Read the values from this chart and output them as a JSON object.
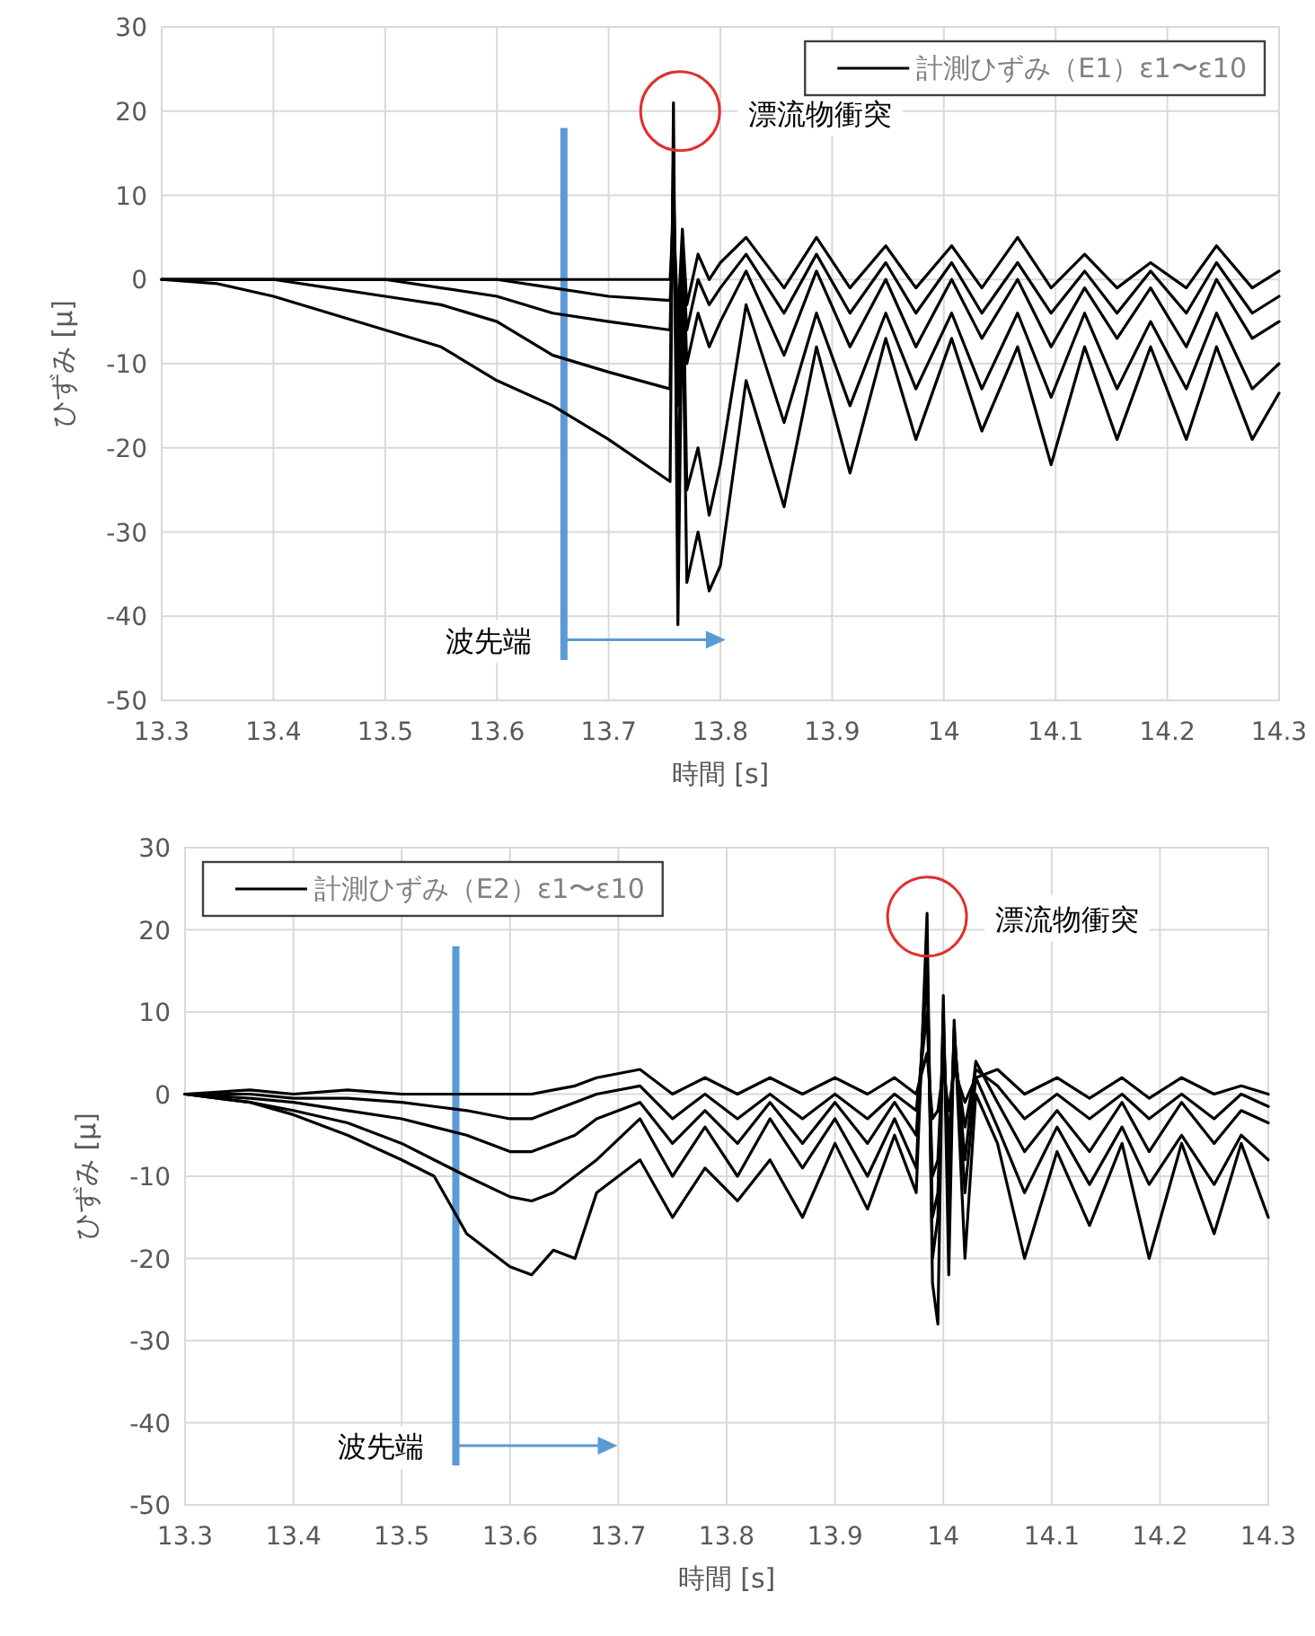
{
  "chart_data": [
    {
      "type": "line",
      "xlabel": "時間 [s]",
      "ylabel": "ひずみ [μ]",
      "legend": "top right",
      "grid": true,
      "xlim": [
        13.3,
        14.3
      ],
      "ylim": [
        -50,
        30
      ],
      "xticks": [
        13.3,
        13.4,
        13.5,
        13.6,
        13.7,
        13.8,
        13.9,
        14,
        14.1,
        14.2,
        14.3
      ],
      "yticks": [
        -50,
        -40,
        -30,
        -20,
        -10,
        0,
        10,
        20,
        30
      ],
      "x": [
        13.3,
        13.35,
        13.4,
        13.45,
        13.5,
        13.55,
        13.6,
        13.65,
        13.7,
        13.755,
        13.758,
        13.762,
        13.766,
        13.77,
        13.78,
        13.79,
        13.8,
        13.823,
        13.857,
        13.886,
        13.916,
        13.948,
        13.975,
        14.007,
        14.034,
        14.066,
        14.096,
        14.126,
        14.155,
        14.185,
        14.217,
        14.244,
        14.276,
        14.3
      ],
      "series": [
        {
          "name": "計測ひずみ（E1）ε1〜ε10",
          "color": "#000000",
          "values": [
            0,
            0,
            0,
            0,
            0,
            0,
            0,
            0,
            0,
            0,
            8,
            -5,
            6,
            -3,
            3,
            0,
            2,
            5,
            -1,
            5,
            -1,
            4,
            -1,
            4,
            -1,
            5,
            -1,
            3,
            -1,
            2,
            -1,
            4,
            -1,
            1
          ]
        },
        {
          "color": "#000000",
          "values": [
            0,
            0,
            0,
            0,
            0,
            0,
            0,
            -1,
            -2,
            -2.5,
            4,
            -8,
            3,
            -6,
            0,
            -3,
            -1,
            3,
            -4,
            3,
            -4,
            2,
            -4,
            2,
            -4,
            2,
            -4,
            1,
            -4,
            1,
            -4,
            2,
            -4,
            -2
          ]
        },
        {
          "color": "#000000",
          "values": [
            0,
            0,
            0,
            0,
            0,
            -1,
            -2,
            -4,
            -5,
            -6,
            12,
            -15,
            5,
            -10,
            -4,
            -8,
            -5,
            1,
            -9,
            1,
            -8,
            0,
            -8,
            0,
            -7,
            0,
            -8,
            -1,
            -7,
            -1,
            -8,
            0,
            -7,
            -5
          ]
        },
        {
          "color": "#000000",
          "values": [
            0,
            0,
            0,
            -1,
            -2,
            -3,
            -5,
            -9,
            -11,
            -13,
            15,
            -30,
            5,
            -25,
            -20,
            -28,
            -22,
            -3,
            -17,
            -4,
            -15,
            -4,
            -13,
            -4,
            -13,
            -4,
            -14,
            -4,
            -13,
            -5,
            -13,
            -4,
            -13,
            -10
          ]
        },
        {
          "color": "#000000",
          "values": [
            0,
            -0.5,
            -2,
            -4,
            -6,
            -8,
            -12,
            -15,
            -19,
            -24,
            21,
            -41,
            0,
            -36,
            -30,
            -37,
            -34,
            -12,
            -27,
            -8,
            -23,
            -7,
            -19,
            -7,
            -18,
            -8,
            -22,
            -8,
            -19,
            -8,
            -19,
            -8,
            -19,
            -13.5
          ]
        }
      ],
      "ref_lines": [
        {
          "axis": "x",
          "value": 13.66,
          "label": "波先端",
          "color": "#5b9bd5"
        }
      ],
      "annotations": [
        {
          "text": "漂流物衝突",
          "x": 13.764,
          "y": 20
        }
      ]
    },
    {
      "type": "line",
      "xlabel": "時間 [s]",
      "ylabel": "ひずみ [μ]",
      "legend": "top left",
      "grid": true,
      "xlim": [
        13.3,
        14.3
      ],
      "ylim": [
        -50,
        30
      ],
      "xticks": [
        13.3,
        13.4,
        13.5,
        13.6,
        13.7,
        13.8,
        13.9,
        14,
        14.1,
        14.2,
        14.3
      ],
      "yticks": [
        -50,
        -40,
        -30,
        -20,
        -10,
        0,
        10,
        20,
        30
      ],
      "x": [
        13.3,
        13.36,
        13.4,
        13.45,
        13.5,
        13.53,
        13.56,
        13.6,
        13.62,
        13.64,
        13.66,
        13.68,
        13.72,
        13.75,
        13.78,
        13.81,
        13.84,
        13.87,
        13.9,
        13.93,
        13.955,
        13.975,
        13.985,
        13.99,
        13.995,
        14.0,
        14.005,
        14.01,
        14.02,
        14.03,
        14.05,
        14.075,
        14.105,
        14.135,
        14.165,
        14.19,
        14.22,
        14.25,
        14.275,
        14.3
      ],
      "series": [
        {
          "name": "計測ひずみ（E2）ε1〜ε10",
          "color": "#000000",
          "values": [
            0,
            0.5,
            0,
            0.5,
            0,
            0,
            0,
            0,
            0,
            0.5,
            1,
            2,
            3,
            0,
            2,
            0,
            2,
            0,
            2,
            0,
            2,
            0,
            5,
            -3,
            -2,
            3,
            -2,
            3,
            -1,
            2,
            3,
            0,
            2,
            -0.5,
            2,
            -0.5,
            2,
            0,
            1,
            0
          ]
        },
        {
          "color": "#000000",
          "values": [
            0,
            0,
            -0.5,
            -0.5,
            -1,
            -1.5,
            -2,
            -3,
            -3,
            -2,
            -1,
            0,
            1,
            -3,
            0,
            -3,
            0,
            -3,
            0,
            -3,
            0,
            -2,
            10,
            -10,
            -8,
            6,
            -6,
            5,
            -4,
            3,
            1,
            -3,
            0,
            -3,
            0,
            -3,
            0,
            -3,
            0,
            -1.5
          ]
        },
        {
          "color": "#000000",
          "values": [
            0,
            -0.5,
            -1,
            -2,
            -3,
            -4,
            -5,
            -7,
            -7,
            -6,
            -5,
            -3,
            -1,
            -6,
            -2,
            -6,
            -1,
            -6,
            -1,
            -6,
            -1,
            -5,
            15,
            -15,
            -12,
            8,
            -10,
            7,
            -8,
            4,
            -1,
            -7,
            -2,
            -7,
            -1,
            -7,
            -1,
            -6,
            -2,
            -3.5
          ]
        },
        {
          "color": "#000000",
          "values": [
            0,
            -1,
            -2,
            -3.5,
            -6,
            -8,
            -10,
            -12.5,
            -13,
            -12,
            -10,
            -8,
            -3,
            -10,
            -4,
            -10,
            -3,
            -9,
            -3,
            -10,
            -3,
            -9,
            18,
            -20,
            -15,
            10,
            -14,
            8,
            -12,
            2,
            -4,
            -12,
            -4,
            -11,
            -4,
            -11,
            -5,
            -11,
            -5,
            -8
          ]
        },
        {
          "color": "#000000",
          "values": [
            0,
            -1,
            -2.5,
            -5,
            -8,
            -10,
            -17,
            -21,
            -22,
            -19,
            -20,
            -12,
            -8,
            -15,
            -9,
            -13,
            -8,
            -15,
            -6,
            -14,
            -5,
            -12,
            22,
            -23,
            -28,
            12,
            -22,
            9,
            -20,
            0,
            -6,
            -20,
            -7,
            -16,
            -6,
            -20,
            -6,
            -17,
            -6,
            -15
          ]
        }
      ],
      "ref_lines": [
        {
          "axis": "x",
          "value": 13.55,
          "label": "波先端",
          "color": "#5b9bd5"
        }
      ],
      "annotations": [
        {
          "text": "漂流物衝突",
          "x": 13.985,
          "y": 21.6
        }
      ]
    }
  ]
}
